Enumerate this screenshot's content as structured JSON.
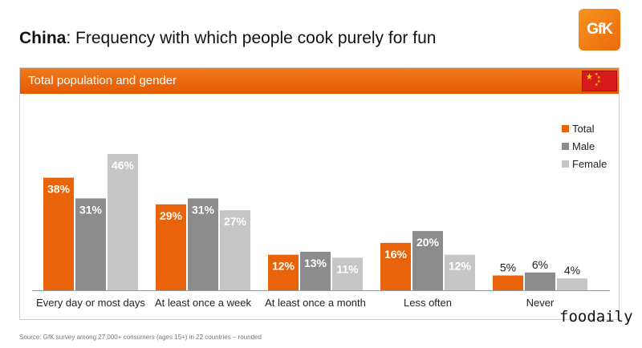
{
  "header": {
    "title_bold": "China",
    "title_rest": ": Frequency with which people cook purely for fun",
    "logo_text": "GfK"
  },
  "panel": {
    "title": "Total population and gender"
  },
  "footer": {
    "source": "Source: GfK survey among 27,000+ consumers (ages 15+) in 22 countries – rounded",
    "watermark": "foodaily"
  },
  "colors": {
    "accent": "#e8630a",
    "total": "#e8630a",
    "male": "#8c8c8c",
    "female": "#c6c6c6"
  },
  "chart_data": {
    "type": "bar",
    "title": "Total population and gender",
    "categories": [
      "Every day or most days",
      "At least once a week",
      "At least once a month",
      "Less often",
      "Never"
    ],
    "series": [
      {
        "name": "Total",
        "color": "#e8630a",
        "values": [
          38,
          29,
          12,
          16,
          5
        ]
      },
      {
        "name": "Male",
        "color": "#8c8c8c",
        "values": [
          31,
          31,
          13,
          20,
          6
        ]
      },
      {
        "name": "Female",
        "color": "#c6c6c6",
        "values": [
          46,
          27,
          11,
          12,
          4
        ]
      }
    ],
    "value_suffix": "%",
    "xlabel": "",
    "ylabel": "",
    "ylim": [
      0,
      46
    ],
    "grid": false,
    "legend_position": "top-right"
  }
}
